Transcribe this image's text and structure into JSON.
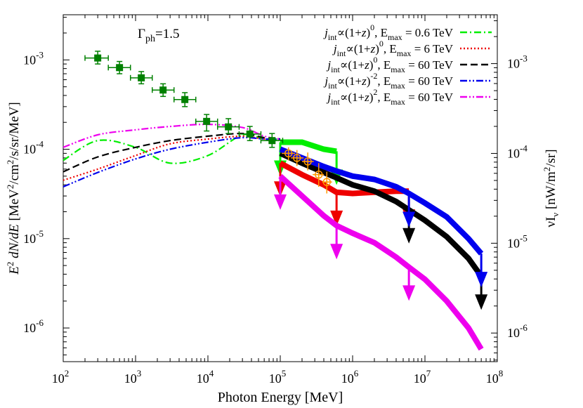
{
  "chart_data": {
    "type": "line",
    "title": "",
    "annotation": "Γph=1.5",
    "annotation_main": "Γ",
    "annotation_sub": "ph",
    "annotation_rest": "=1.5",
    "xlabel": "Photon Energy [MeV]",
    "ylabel": "E² dN/dE [MeV²/cm²/s/sr/MeV]",
    "ylabel_parts": {
      "e": "E",
      "e_sup": "2",
      "mid": " dN/dE",
      "rest": " [MeV",
      "s1": "2",
      "cm": "/cm",
      "s2": "2",
      "tail": "/s/sr/MeV]"
    },
    "y2label": "νIν [nW/m²/sr]",
    "y2label_parts": {
      "nu": "νI",
      "sub": "ν",
      "rest": " [nW/m",
      "sup": "2",
      "tail": "/sr]"
    },
    "x_scale": "log",
    "y_scale": "log",
    "xlim": [
      100,
      100000000
    ],
    "ylim": [
      4.2e-07,
      0.0032
    ],
    "y2lim": [
      4.8e-07,
      0.0035
    ],
    "x_ticks": [
      {
        "base": "10",
        "exp": "2",
        "value": 100
      },
      {
        "base": "10",
        "exp": "3",
        "value": 1000
      },
      {
        "base": "10",
        "exp": "4",
        "value": 10000
      },
      {
        "base": "10",
        "exp": "5",
        "value": 100000
      },
      {
        "base": "10",
        "exp": "6",
        "value": 1000000
      },
      {
        "base": "10",
        "exp": "7",
        "value": 10000000
      },
      {
        "base": "10",
        "exp": "8",
        "value": 100000000
      }
    ],
    "y_ticks": [
      {
        "base": "10",
        "exp": "-3",
        "value": 0.001
      },
      {
        "base": "10",
        "exp": "-4",
        "value": 0.0001
      },
      {
        "base": "10",
        "exp": "-5",
        "value": 1e-05
      },
      {
        "base": "10",
        "exp": "-6",
        "value": 1e-06
      }
    ],
    "y2_ticks": [
      {
        "base": "10",
        "exp": "-3",
        "value": 0.001
      },
      {
        "base": "10",
        "exp": "-4",
        "value": 0.0001
      },
      {
        "base": "10",
        "exp": "-5",
        "value": 1e-05
      },
      {
        "base": "10",
        "exp": "-6",
        "value": 1e-06
      }
    ],
    "legend_position": "top-right",
    "series": [
      {
        "name": "jint∝(1+z)0, Emax = 0.6 TeV",
        "label_parts": [
          "j",
          "int",
          "∝(1+",
          "z",
          ")",
          "0",
          ", E",
          "max",
          " = 0.6 TeV"
        ],
        "color": "#00ee00",
        "dash": "dash-dot",
        "x": [
          100,
          300,
          1000,
          3000,
          10000,
          30000,
          60000,
          100000
        ],
        "y": [
          7.5e-05,
          0.000125,
          0.000105,
          7e-05,
          8.5e-05,
          0.000145,
          0.00013,
          0.00013
        ]
      },
      {
        "name": "jint∝(1+z)0, Emax = 6 TeV",
        "label_parts": [
          "j",
          "int",
          "∝(1+",
          "z",
          ")",
          "0",
          ", E",
          "max",
          " = 6 TeV"
        ],
        "color": "#ee0000",
        "dash": "dotted",
        "x": [
          100,
          300,
          1000,
          3000,
          10000,
          30000,
          60000,
          100000
        ],
        "y": [
          4.5e-05,
          6e-05,
          8.5e-05,
          0.000115,
          0.00013,
          0.00014,
          0.00013,
          0.00013
        ]
      },
      {
        "name": "jint∝(1+z)0, Emax = 60 TeV",
        "label_parts": [
          "j",
          "int",
          "∝(1+",
          "z",
          ")",
          "0",
          ", E",
          "max",
          " = 60 TeV"
        ],
        "color": "#000000",
        "dash": "dashed",
        "x": [
          100,
          300,
          1000,
          3000,
          10000,
          30000,
          60000,
          100000
        ],
        "y": [
          5.6e-05,
          8.2e-05,
          0.000105,
          0.000125,
          0.00014,
          0.00015,
          0.000135,
          0.00013
        ]
      },
      {
        "name": "jint∝(1+z)-2, Emax = 60 TeV",
        "label_parts": [
          "j",
          "int",
          "∝(1+",
          "z",
          ")",
          "-2",
          ", E",
          "max",
          " = 60 TeV"
        ],
        "color": "#0000ee",
        "dash": "dash-dot-dot",
        "x": [
          100,
          300,
          1000,
          3000,
          10000,
          30000,
          60000,
          100000
        ],
        "y": [
          3.8e-05,
          5.5e-05,
          7.8e-05,
          0.0001,
          0.00012,
          0.000135,
          0.00013,
          0.00013
        ]
      },
      {
        "name": "jint∝(1+z)2, Emax = 60 TeV",
        "label_parts": [
          "j",
          "int",
          "∝(1+",
          "z",
          ")",
          "2",
          ", E",
          "max",
          " = 60 TeV"
        ],
        "color": "#ee00ee",
        "dash": "dash-dot-dot",
        "x": [
          100,
          300,
          1000,
          3000,
          10000,
          30000,
          60000,
          100000
        ],
        "y": [
          0.000105,
          0.000145,
          0.000165,
          0.00018,
          0.00019,
          0.000175,
          0.00014,
          0.00013
        ]
      }
    ],
    "upper_limit_curves": [
      {
        "color": "#00ee00",
        "x": [
          100000,
          200000,
          400000,
          600000
        ],
        "y": [
          0.00012,
          0.00012,
          0.0001,
          9.5e-05
        ],
        "arrows": [
          {
            "x": 100000,
            "y": 0.00012
          },
          {
            "x": 600000,
            "y": 9.5e-05
          }
        ]
      },
      {
        "color": "#ee0000",
        "x": [
          100000,
          200000,
          400000,
          600000,
          1000000,
          2000000,
          4000000,
          6000000
        ],
        "y": [
          7e-05,
          5.2e-05,
          4e-05,
          3.3e-05,
          3.2e-05,
          3.3e-05,
          3.4e-05,
          3.4e-05
        ],
        "arrows": [
          {
            "x": 100000,
            "y": 7e-05
          },
          {
            "x": 600000,
            "y": 3.3e-05
          },
          {
            "x": 6000000,
            "y": 3.4e-05
          }
        ]
      },
      {
        "color": "#000000",
        "x": [
          100000,
          200000,
          400000,
          600000,
          1000000,
          2000000,
          4000000,
          6000000,
          10000000,
          20000000,
          40000000,
          60000000
        ],
        "y": [
          9e-05,
          7e-05,
          5.5e-05,
          4.8e-05,
          4e-05,
          3.4e-05,
          2.6e-05,
          2.1e-05,
          1.6e-05,
          1.05e-05,
          6e-06,
          3.8e-06
        ],
        "arrows": [
          {
            "x": 6000000,
            "y": 2.1e-05
          },
          {
            "x": 60000000,
            "y": 3.8e-06
          }
        ]
      },
      {
        "color": "#0000ee",
        "x": [
          100000,
          200000,
          400000,
          600000,
          1000000,
          2000000,
          4000000,
          6000000,
          10000000,
          20000000,
          40000000,
          60000000
        ],
        "y": [
          0.0001,
          8e-05,
          6.4e-05,
          5.7e-05,
          5e-05,
          4.6e-05,
          3.8e-05,
          3.2e-05,
          2.5e-05,
          1.75e-05,
          1e-05,
          6.8e-06
        ],
        "arrows": [
          {
            "x": 6000000,
            "y": 3.2e-05
          },
          {
            "x": 60000000,
            "y": 6.8e-06
          }
        ]
      },
      {
        "color": "#ee00ee",
        "x": [
          100000,
          200000,
          400000,
          600000,
          1000000,
          2000000,
          4000000,
          6000000,
          10000000,
          20000000,
          40000000,
          60000000
        ],
        "y": [
          5e-05,
          3e-05,
          1.8e-05,
          1.4e-05,
          1.15e-05,
          9e-06,
          6.2e-06,
          4.8e-06,
          3.5e-06,
          2e-06,
          1e-06,
          5.8e-07
        ],
        "arrows": [
          {
            "x": 100000,
            "y": 5e-05
          },
          {
            "x": 600000,
            "y": 1.4e-05
          },
          {
            "x": 6000000,
            "y": 4.8e-06
          }
        ]
      }
    ],
    "data_points": {
      "color": "#008000",
      "points": [
        {
          "x": 300,
          "y": 0.00105,
          "y_err_lo": 0.0009,
          "y_err_hi": 0.00125,
          "x_lo": 200,
          "x_hi": 420
        },
        {
          "x": 600,
          "y": 0.00082,
          "y_err_lo": 0.0007,
          "y_err_hi": 0.00096,
          "x_lo": 420,
          "x_hi": 850
        },
        {
          "x": 1200,
          "y": 0.00063,
          "y_err_lo": 0.00054,
          "y_err_hi": 0.00074,
          "x_lo": 850,
          "x_hi": 1700
        },
        {
          "x": 2400,
          "y": 0.00046,
          "y_err_lo": 0.00039,
          "y_err_hi": 0.00054,
          "x_lo": 1700,
          "x_hi": 3400
        },
        {
          "x": 4800,
          "y": 0.00036,
          "y_err_lo": 0.0003,
          "y_err_hi": 0.00043,
          "x_lo": 3400,
          "x_hi": 6800
        },
        {
          "x": 9600,
          "y": 0.000205,
          "y_err_lo": 0.00016,
          "y_err_hi": 0.000245,
          "x_lo": 6800,
          "x_hi": 13600
        },
        {
          "x": 19200,
          "y": 0.000178,
          "y_err_lo": 0.00015,
          "y_err_hi": 0.00022,
          "x_lo": 13600,
          "x_hi": 27000
        },
        {
          "x": 38000,
          "y": 0.000148,
          "y_err_lo": 0.000125,
          "y_err_hi": 0.00018,
          "x_lo": 27000,
          "x_hi": 54000
        },
        {
          "x": 77000,
          "y": 0.000125,
          "y_err_lo": 0.000105,
          "y_err_hi": 0.00015,
          "x_lo": 54000,
          "x_hi": 108000
        }
      ]
    },
    "other_data_points": {
      "color": "#ff9900",
      "points": [
        {
          "x": 130000,
          "y": 9e-05,
          "y_err_lo": 7.5e-05,
          "y_err_hi": 0.000105,
          "x_lo": 105000,
          "x_hi": 160000
        },
        {
          "x": 170000,
          "y": 8e-05,
          "y_err_lo": 6.5e-05,
          "y_err_hi": 9.8e-05,
          "x_lo": 140000,
          "x_hi": 210000
        },
        {
          "x": 240000,
          "y": 7.3e-05,
          "y_err_lo": 5.8e-05,
          "y_err_hi": 9.2e-05,
          "x_lo": 200000,
          "x_hi": 290000
        },
        {
          "x": 340000,
          "y": 5.2e-05,
          "y_err_lo": 3.8e-05,
          "y_err_hi": 7e-05,
          "x_lo": 280000,
          "x_hi": 400000
        },
        {
          "x": 440000,
          "y": 4.3e-05,
          "y_err_lo": 3.2e-05,
          "y_err_hi": 5.6e-05,
          "x_lo": 380000,
          "x_hi": 520000
        }
      ]
    }
  }
}
